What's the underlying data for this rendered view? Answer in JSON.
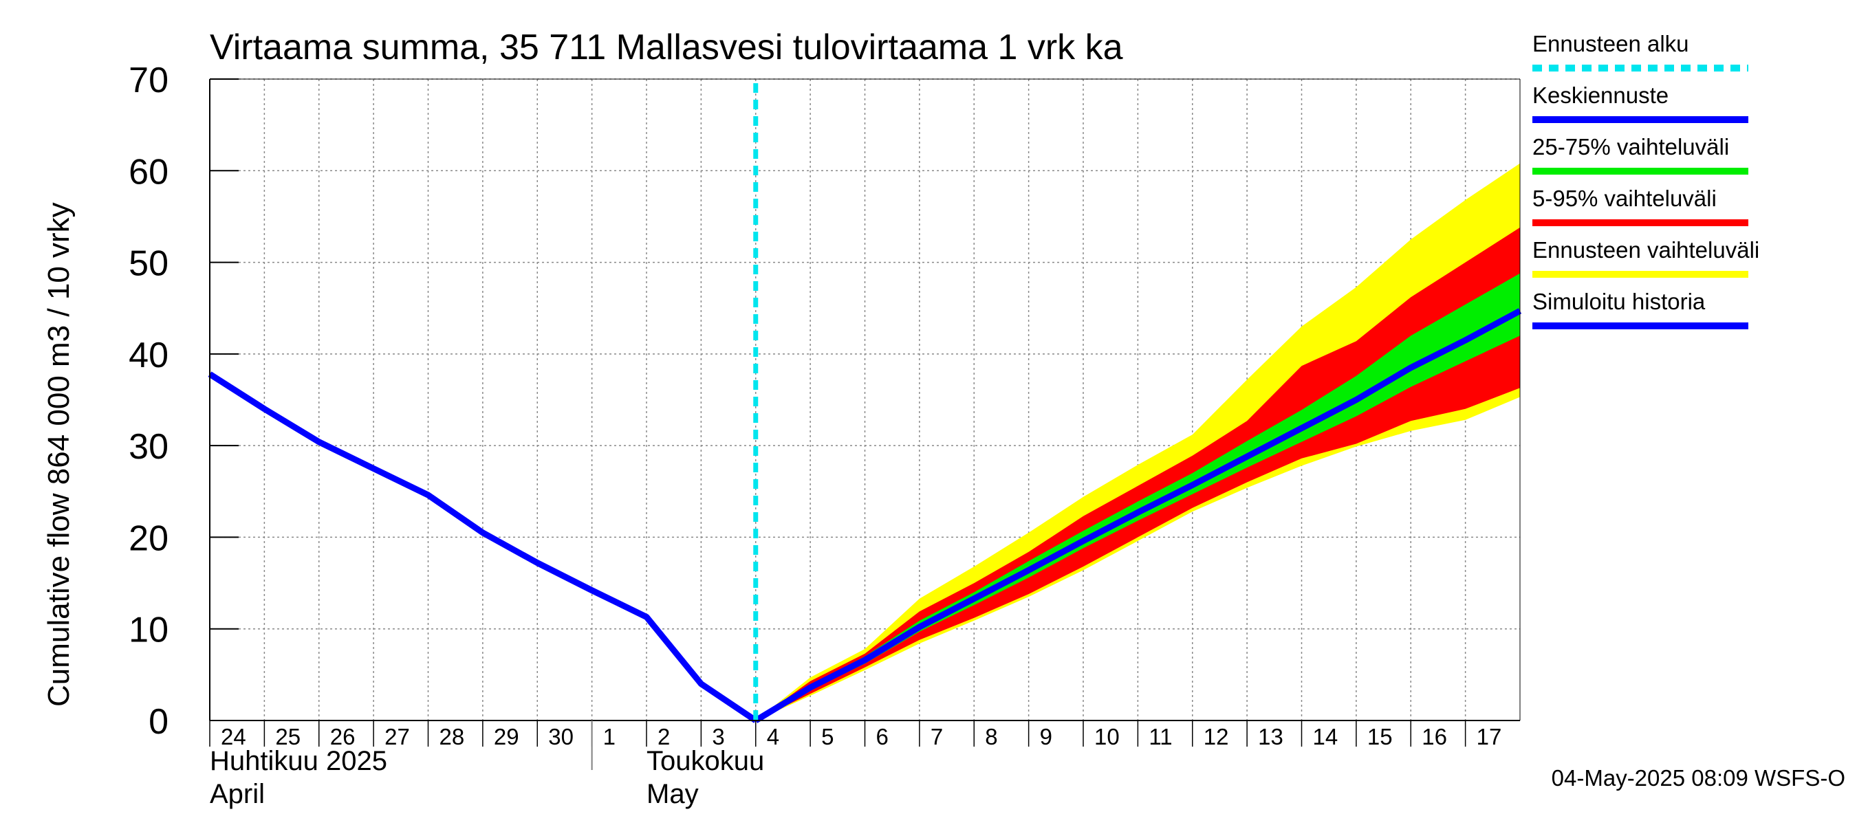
{
  "chart_data": {
    "type": "area",
    "title": "Virtaama summa, 35 711 Mallasvesi tulovirtaama 1 vrk ka",
    "ylabel": "Cumulative flow    864 000 m3 / 10 vrky",
    "xlabel": "",
    "ylim": [
      0,
      70
    ],
    "y_ticks": [
      0,
      10,
      20,
      30,
      40,
      50,
      60,
      70
    ],
    "x_range": [
      "2025-04-24",
      "2025-05-18"
    ],
    "x_tick_labels": [
      "24",
      "25",
      "26",
      "27",
      "28",
      "29",
      "30",
      "1",
      "2",
      "3",
      "4",
      "5",
      "6",
      "7",
      "8",
      "9",
      "10",
      "11",
      "12",
      "13",
      "14",
      "15",
      "16",
      "17"
    ],
    "x_tick_dates": [
      "2025-04-24",
      "2025-04-25",
      "2025-04-26",
      "2025-04-27",
      "2025-04-28",
      "2025-04-29",
      "2025-04-30",
      "2025-05-01",
      "2025-05-02",
      "2025-05-03",
      "2025-05-04",
      "2025-05-05",
      "2025-05-06",
      "2025-05-07",
      "2025-05-08",
      "2025-05-09",
      "2025-05-10",
      "2025-05-11",
      "2025-05-12",
      "2025-05-13",
      "2025-05-14",
      "2025-05-15",
      "2025-05-16",
      "2025-05-17"
    ],
    "month_labels": [
      {
        "line1": "Huhtikuu  2025",
        "line2": "April",
        "date": "2025-04-24"
      },
      {
        "line1": "Toukokuu",
        "line2": "May",
        "date": "2025-05-02"
      }
    ],
    "month_separator_date": "2025-05-01",
    "grid": true,
    "forecast_start": "2025-05-04",
    "simulated_history": {
      "name": "Simuloitu historia",
      "x": [
        "2025-04-24",
        "2025-04-25",
        "2025-04-26",
        "2025-04-27",
        "2025-04-28",
        "2025-04-29",
        "2025-04-30",
        "2025-05-01",
        "2025-05-02",
        "2025-05-03",
        "2025-05-04"
      ],
      "y": [
        37.8,
        34.0,
        30.4,
        27.5,
        24.6,
        20.5,
        17.2,
        14.2,
        11.3,
        4.0,
        0.0
      ]
    },
    "forecast_dates": [
      "2025-05-04",
      "2025-05-05",
      "2025-05-06",
      "2025-05-07",
      "2025-05-08",
      "2025-05-09",
      "2025-05-10",
      "2025-05-11",
      "2025-05-12",
      "2025-05-13",
      "2025-05-14",
      "2025-05-15",
      "2025-05-16",
      "2025-05-17",
      "2025-05-18"
    ],
    "median_forecast": {
      "name": "Keskiennuste",
      "y": [
        0.0,
        3.6,
        6.6,
        10.2,
        13.3,
        16.4,
        19.6,
        22.7,
        25.7,
        28.8,
        31.9,
        35.0,
        38.5,
        41.5,
        44.7
      ]
    },
    "band_25_75": {
      "name": "25-75% vaihteluväli",
      "low": [
        0.0,
        3.3,
        6.2,
        9.7,
        12.6,
        15.6,
        18.8,
        21.8,
        24.7,
        27.6,
        30.4,
        33.2,
        36.4,
        39.2,
        42.0
      ],
      "high": [
        0.0,
        3.9,
        7.0,
        10.9,
        14.0,
        17.4,
        20.7,
        23.9,
        27.0,
        30.5,
        33.9,
        37.6,
        42.0,
        45.4,
        48.8
      ]
    },
    "band_5_95": {
      "name": "5-95% vaihteluväli",
      "low": [
        0.0,
        2.9,
        5.8,
        8.8,
        11.2,
        13.8,
        16.8,
        20.0,
        23.2,
        26.0,
        28.6,
        30.2,
        32.7,
        34.0,
        36.3
      ],
      "high": [
        0.0,
        4.3,
        7.3,
        11.9,
        15.0,
        18.4,
        22.3,
        25.6,
        28.9,
        32.7,
        38.7,
        41.4,
        46.2,
        50.0,
        53.8
      ]
    },
    "band_forecast_range": {
      "name": "Ennusteen vaihteluväli",
      "low": [
        0.0,
        2.7,
        5.5,
        8.4,
        10.9,
        13.5,
        16.4,
        19.6,
        22.8,
        25.4,
        27.8,
        29.9,
        31.6,
        32.8,
        35.3
      ],
      "high": [
        0.0,
        4.7,
        7.8,
        13.3,
        16.8,
        20.5,
        24.4,
        27.9,
        31.2,
        37.2,
        43.0,
        47.3,
        52.5,
        56.8,
        60.8
      ]
    },
    "legend": {
      "placement": "right",
      "entries": [
        {
          "label": "Ennusteen alku",
          "color": "#00e5ee",
          "style": "dashed"
        },
        {
          "label": "Keskiennuste",
          "color": "#0000ff",
          "style": "solid"
        },
        {
          "label": "25-75% vaihteluväli",
          "color": "#00ee00",
          "style": "solid"
        },
        {
          "label": "5-95% vaihteluväli",
          "color": "#ff0000",
          "style": "solid"
        },
        {
          "label": "Ennusteen vaihteluväli",
          "color": "#ffff00",
          "style": "solid"
        },
        {
          "label": "Simuloitu historia",
          "color": "#0000ff",
          "style": "solid"
        }
      ]
    },
    "colors": {
      "history_line": "#0000ff",
      "median_line": "#0000ff",
      "band_25_75": "#00ee00",
      "band_5_95": "#ff0000",
      "band_forecast_range": "#ffff00",
      "forecast_start_line": "#00e5ee",
      "grid": "#888888",
      "axis": "#000000"
    },
    "footer": "04-May-2025 08:09 WSFS-O"
  }
}
